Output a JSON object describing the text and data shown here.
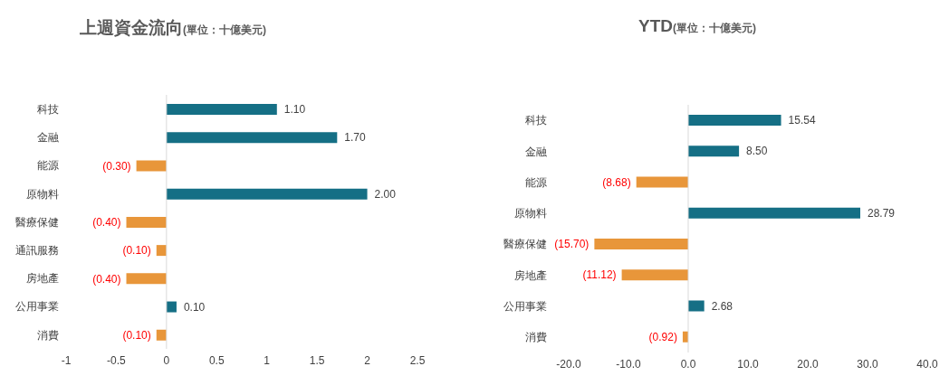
{
  "chart_data": [
    {
      "type": "bar",
      "orientation": "horizontal",
      "title": "上週資金流向",
      "subtitle": "(單位：十億美元)",
      "categories": [
        "科技",
        "金融",
        "能源",
        "原物料",
        "醫療保健",
        "通訊服務",
        "房地產",
        "公用事業",
        "消費"
      ],
      "values": [
        1.1,
        1.7,
        -0.3,
        2.0,
        -0.4,
        -0.1,
        -0.4,
        0.1,
        -0.1
      ],
      "colors": [
        "#156f85",
        "#156f85",
        "#e8963a",
        "#156f85",
        "#e8963a",
        "#e8963a",
        "#e8963a",
        "#156f85",
        "#e8963a"
      ],
      "value_labels": [
        "1.10",
        "1.70",
        "(0.30)",
        "2.00",
        "(0.40)",
        "(0.10)",
        "(0.40)",
        "0.10",
        "(0.10)"
      ],
      "xlim": [
        -1,
        2.5
      ],
      "xticks": [
        -1,
        -0.5,
        0,
        0.5,
        1,
        1.5,
        2,
        2.5
      ],
      "ref_lines": [
        {
          "axis": "x",
          "value": 0,
          "color": "#d9d9d9"
        }
      ],
      "grid": false,
      "legend": false
    },
    {
      "type": "bar",
      "orientation": "horizontal",
      "title": "YTD",
      "subtitle": "(單位：十億美元)",
      "categories": [
        "科技",
        "金融",
        "能源",
        "原物料",
        "醫療保健",
        "房地產",
        "公用事業",
        "消費"
      ],
      "values": [
        15.54,
        8.5,
        -8.68,
        28.79,
        -15.7,
        -11.12,
        2.68,
        -0.92
      ],
      "colors": [
        "#156f85",
        "#156f85",
        "#e8963a",
        "#156f85",
        "#e8963a",
        "#e8963a",
        "#156f85",
        "#e8963a"
      ],
      "value_labels": [
        "15.54",
        "8.50",
        "(8.68)",
        "28.79",
        "(15.70)",
        "(11.12)",
        "2.68",
        "(0.92)"
      ],
      "xlim": [
        -20,
        40
      ],
      "xticks": [
        {
          "value": -20,
          "label": "-20.0"
        },
        {
          "value": -10,
          "label": "-10.0"
        },
        {
          "value": 0,
          "label": "0.0"
        },
        {
          "value": 10,
          "label": "10.0"
        },
        {
          "value": 20,
          "label": "20.0"
        },
        {
          "value": 30,
          "label": "30.0"
        },
        {
          "value": 40,
          "label": "40.0"
        }
      ],
      "ref_lines": [
        {
          "axis": "x",
          "value": 0,
          "color": "#d9d9d9"
        }
      ],
      "grid": false,
      "legend": false
    }
  ]
}
